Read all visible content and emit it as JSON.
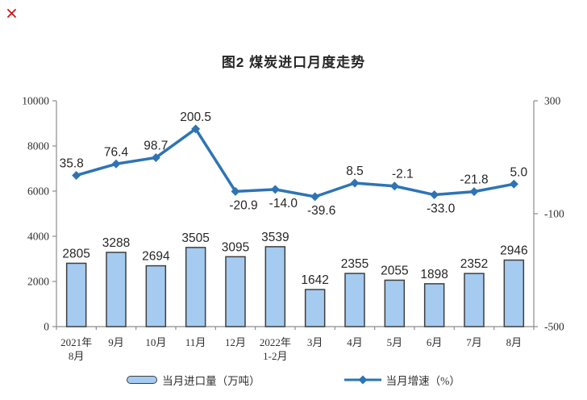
{
  "icons": {
    "broken_image": {
      "name": "broken-image-x",
      "color": "#D0121A"
    }
  },
  "chart_data": {
    "type": "combo",
    "title": "图2 煤炭进口月度走势",
    "categories": [
      "2021年\n8月",
      "9月",
      "10月",
      "11月",
      "12月",
      "2022年\n1-2月",
      "3月",
      "4月",
      "5月",
      "6月",
      "7月",
      "8月"
    ],
    "series": [
      {
        "name": "当月进口量（万吨）",
        "type": "bar",
        "axis": "left",
        "color": "#A5CBF0",
        "border_color": "#3F3F3F",
        "values": [
          2805,
          3288,
          2694,
          3505,
          3095,
          3539,
          1642,
          2355,
          2055,
          1898,
          2352,
          2946
        ]
      },
      {
        "name": "当月增速（%）",
        "type": "line",
        "axis": "right",
        "color": "#2E74B5",
        "values": [
          35.8,
          76.4,
          98.7,
          200.5,
          -20.9,
          -14.0,
          -39.6,
          8.5,
          -2.1,
          -33.0,
          -21.8,
          5.0
        ],
        "label_side": [
          "above",
          "above",
          "above",
          "above",
          "below",
          "below",
          "below",
          "above",
          "above",
          "below",
          "above",
          "above"
        ],
        "label_dx": [
          -6,
          0,
          0,
          0,
          10,
          10,
          8,
          0,
          10,
          8,
          0,
          6
        ]
      }
    ],
    "axes": {
      "left": {
        "min": 0,
        "max": 10000,
        "ticks": [
          0,
          2000,
          4000,
          6000,
          8000,
          10000
        ]
      },
      "right": {
        "min": -500,
        "max": 300,
        "ticks": [
          -500,
          -100,
          300
        ]
      }
    },
    "legend_position": "bottom",
    "grid": false,
    "text_color": "#303030",
    "axis_color": "#8C8C8C"
  }
}
